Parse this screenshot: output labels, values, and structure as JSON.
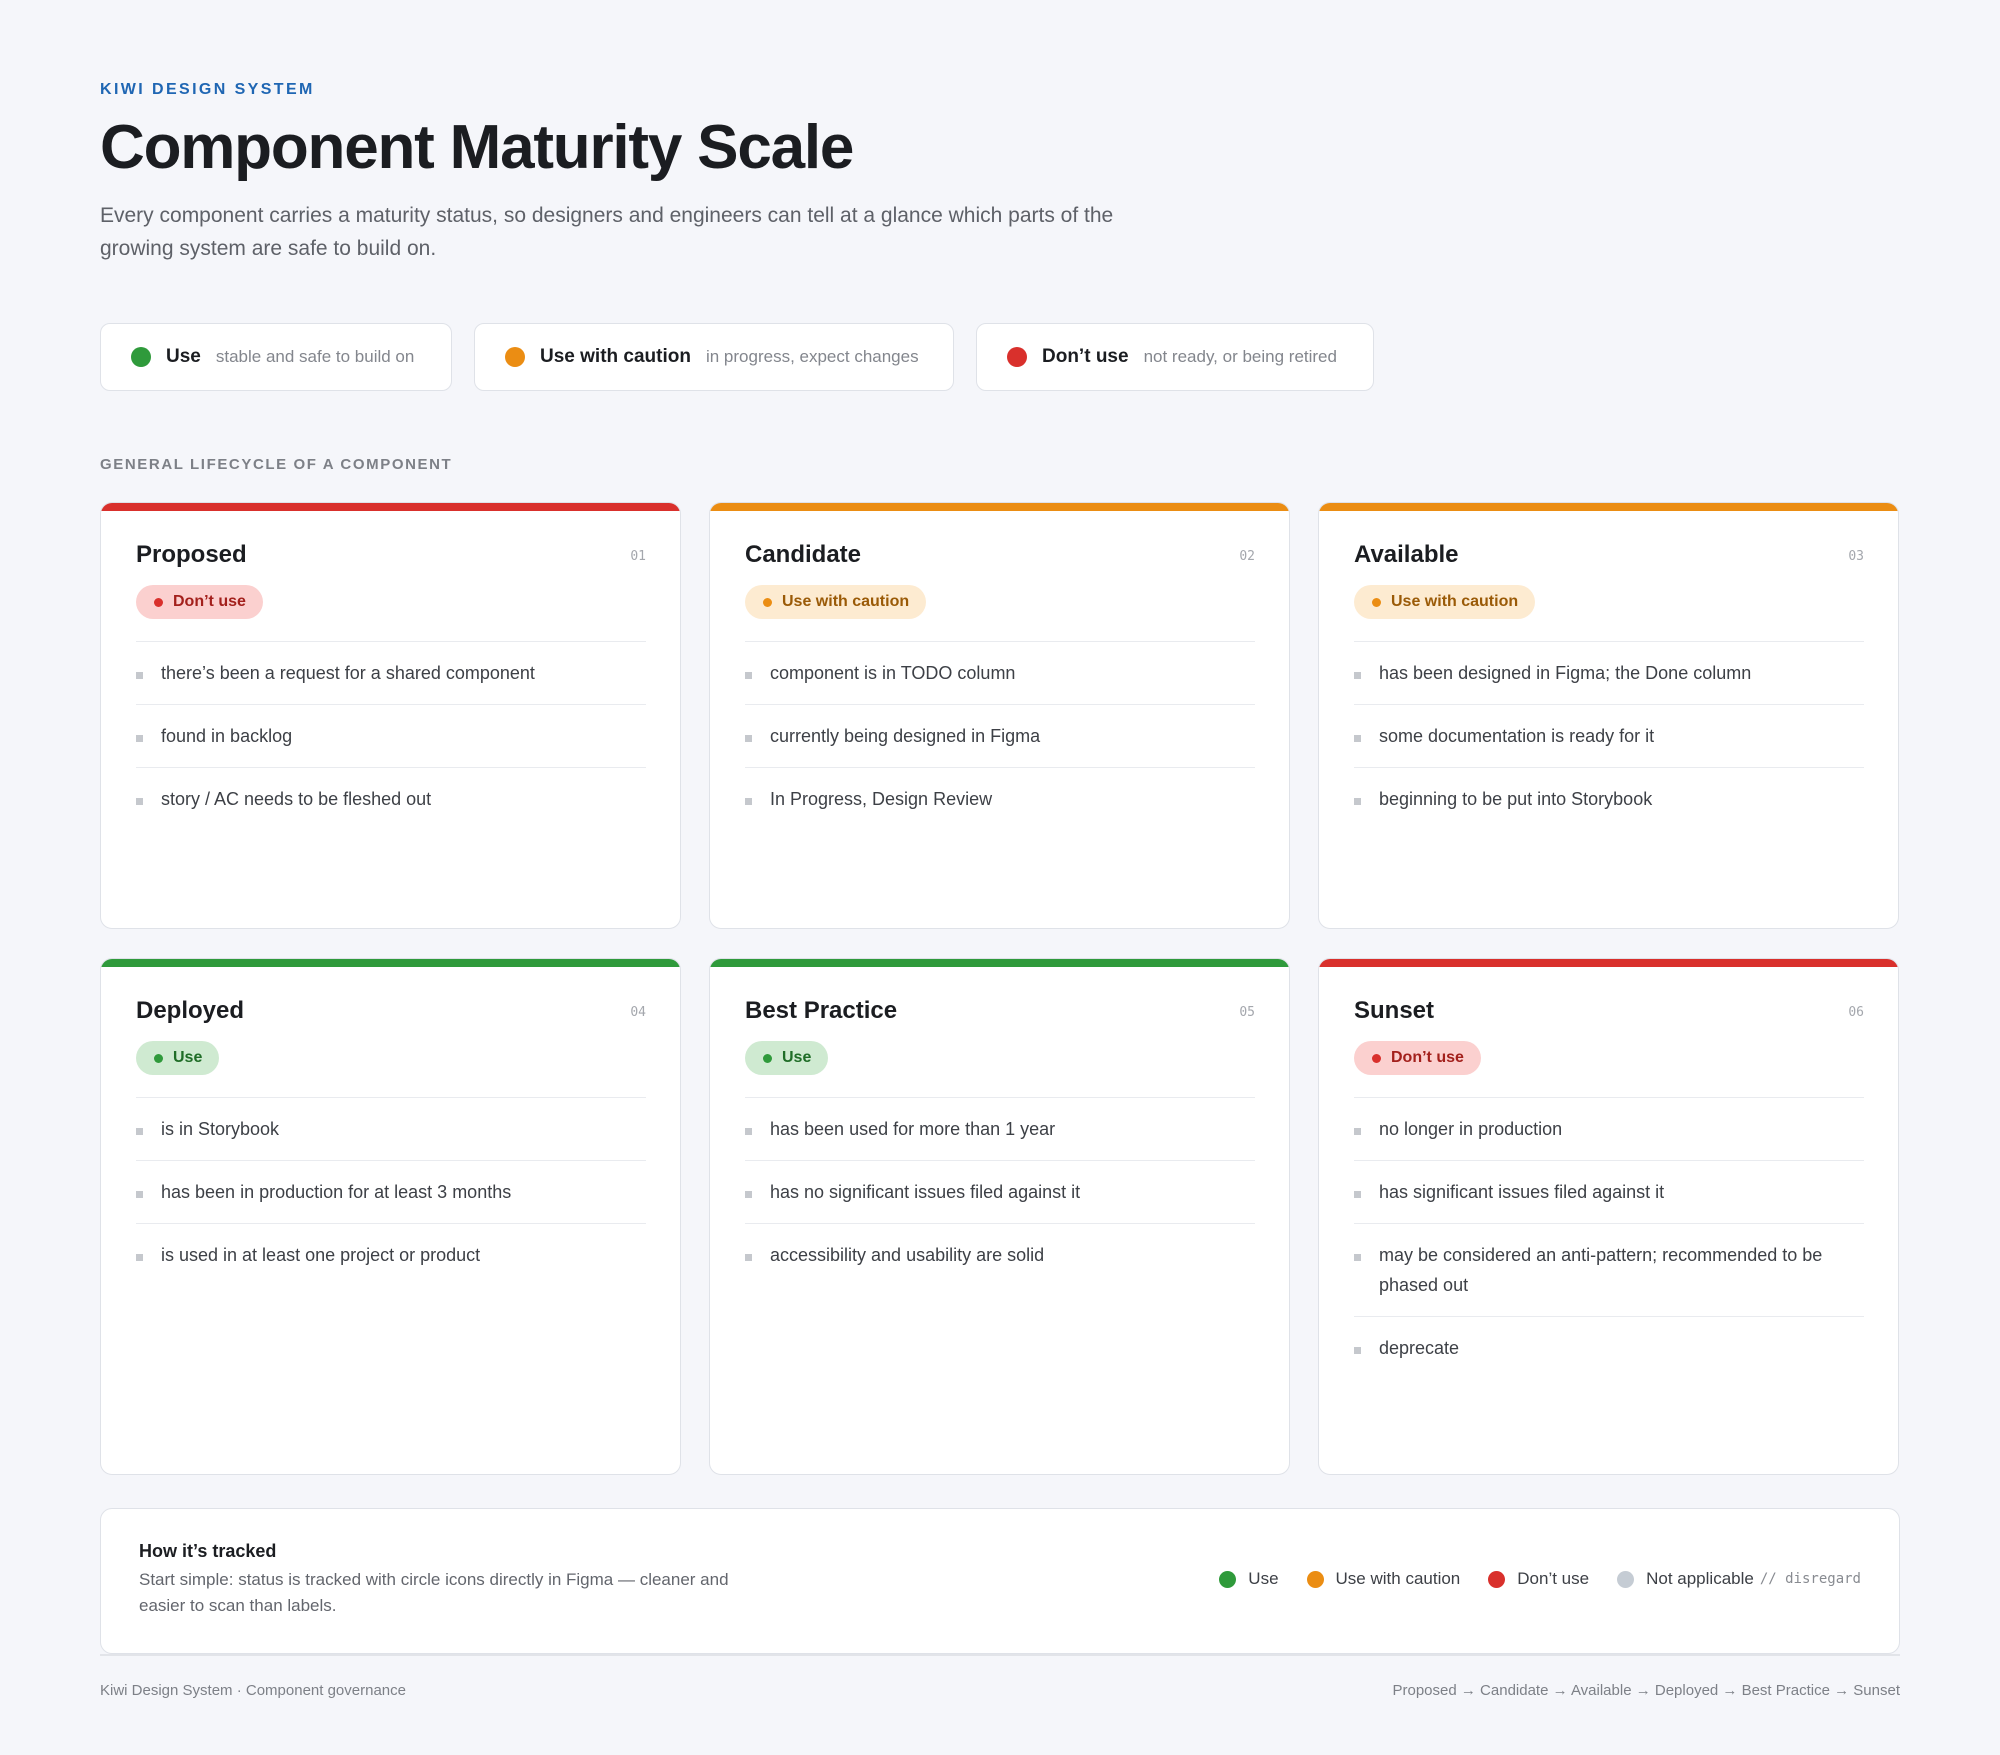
{
  "header": {
    "eyebrow": "KIWI DESIGN SYSTEM",
    "title": "Component Maturity Scale",
    "subtitle": "Every component carries a maturity status, so designers and engineers can tell at a glance which parts of the growing system are safe to build on."
  },
  "colors": {
    "green": "#2f9a3b",
    "orange": "#eb8d13",
    "red": "#d9302c",
    "gray": "#c5ccd4",
    "accent": "#1f66b3"
  },
  "legend": [
    {
      "name": "Use",
      "desc": "stable and safe to build on"
    },
    {
      "name": "Use with caution",
      "desc": "in progress, expect changes"
    },
    {
      "name": "Don’t use",
      "desc": "not ready, or being retired"
    }
  ],
  "section_label": "GENERAL LIFECYCLE OF A COMPONENT",
  "cards": [
    {
      "title": "Proposed",
      "num": "01",
      "status": "Don’t use",
      "items": [
        "there’s been a request for a shared component",
        "found in backlog",
        "story / AC needs to be fleshed out"
      ]
    },
    {
      "title": "Candidate",
      "num": "02",
      "status": "Use with caution",
      "items": [
        "component is in TODO column",
        "currently being designed in Figma",
        "In Progress, Design Review"
      ]
    },
    {
      "title": "Available",
      "num": "03",
      "status": "Use with caution",
      "items": [
        "has been designed in Figma; the Done column",
        "some documentation is ready for it",
        "beginning to be put into Storybook"
      ]
    },
    {
      "title": "Deployed",
      "num": "04",
      "status": "Use",
      "items": [
        "is in Storybook",
        "has been in production for at least 3 months",
        "is used in at least one project or product"
      ]
    },
    {
      "title": "Best Practice",
      "num": "05",
      "status": "Use",
      "items": [
        "has been used for more than 1 year",
        "has no significant issues filed against it",
        "accessibility and usability are solid"
      ]
    },
    {
      "title": "Sunset",
      "num": "06",
      "status": "Don’t use",
      "items": [
        "no longer in production",
        "has significant issues filed against it",
        "may be considered an anti-pattern; recommended to be phased out",
        "deprecate"
      ]
    }
  ],
  "tracked": {
    "title": "How it’s tracked",
    "desc": "Start simple: status is tracked with circle icons directly in Figma — cleaner and easier to scan than labels.",
    "legend": [
      "Use",
      "Use with caution",
      "Don’t use",
      "Not applicable"
    ],
    "note": "// disregard"
  },
  "footer": {
    "left": "Kiwi Design System · Component governance",
    "right": "Proposed → Candidate → Available → Deployed → Best Practice → Sunset"
  }
}
